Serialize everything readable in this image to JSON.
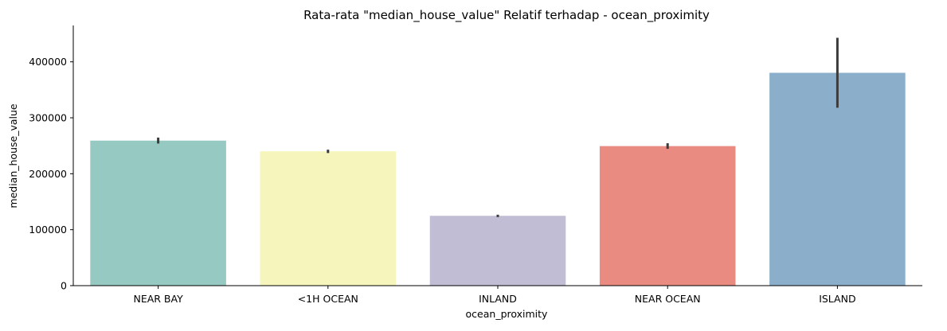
{
  "chart_data": {
    "type": "bar",
    "title": "Rata-rata \"median_house_value\" Relatif terhadap - ocean_proximity",
    "xlabel": "ocean_proximity",
    "ylabel": "median_house_value",
    "categories": [
      "NEAR BAY",
      "<1H OCEAN",
      "INLAND",
      "NEAR OCEAN",
      "ISLAND"
    ],
    "values": [
      259200,
      240100,
      124800,
      249400,
      380400
    ],
    "error_bars": [
      [
        254000,
        264600
      ],
      [
        237000,
        243000
      ],
      [
        122500,
        126800
      ],
      [
        244500,
        254500
      ],
      [
        318000,
        443000
      ]
    ],
    "colors": [
      "#96c9c1",
      "#f6f6bc",
      "#c0bdd5",
      "#e98b80",
      "#8bafca"
    ],
    "error_bar_color": "#3b3b3b",
    "ylim": [
      0,
      465000
    ],
    "yticks": [
      0,
      100000,
      200000,
      300000,
      400000
    ],
    "ytick_labels": [
      "0",
      "100000",
      "200000",
      "300000",
      "400000"
    ],
    "grid": false,
    "legend": "none"
  }
}
